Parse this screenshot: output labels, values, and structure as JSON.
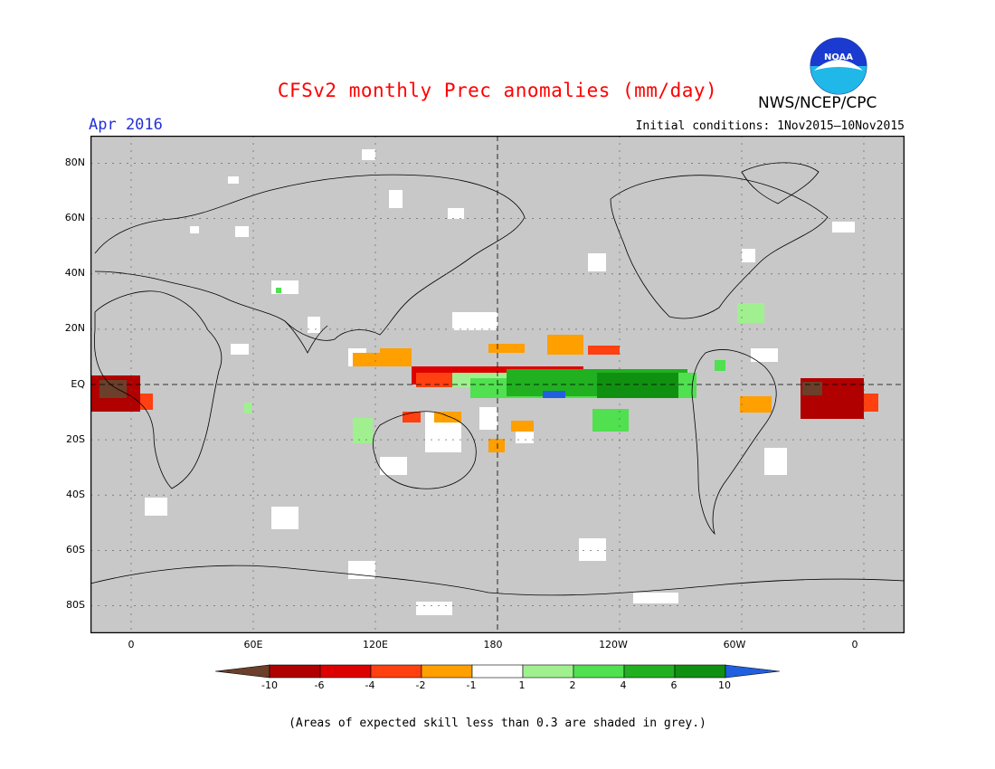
{
  "header": {
    "title": "CFSv2 monthly Prec anomalies (mm/day)",
    "period": "Apr 2016",
    "initial_conditions": "Initial conditions: 1Nov2015–10Nov2015",
    "agency": "NWS/NCEP/CPC",
    "logo_text": "NOAA"
  },
  "map": {
    "projection": "cylindrical equidistant",
    "lon_range": [
      -20,
      380
    ],
    "lat_range": [
      -90,
      90
    ],
    "background": "#c8c8c8",
    "lat_labels": [
      "80N",
      "60N",
      "40N",
      "20N",
      "EQ",
      "20S",
      "40S",
      "60S",
      "80S"
    ],
    "lon_labels": [
      "0",
      "60E",
      "120E",
      "180",
      "120W",
      "60W",
      "0"
    ]
  },
  "legend": {
    "labels": [
      "-10",
      "-6",
      "-4",
      "-2",
      "-1",
      "1",
      "2",
      "4",
      "6",
      "10"
    ],
    "colors": [
      "#6b3f2a",
      "#b00000",
      "#dd0000",
      "#ff4010",
      "#ff9f00",
      "#ffffff",
      "#a0f090",
      "#50e050",
      "#20b020",
      "#109010",
      "#2060e0"
    ]
  },
  "footnote": "(Areas of expected skill less than 0.3 are shaded in grey.)"
}
